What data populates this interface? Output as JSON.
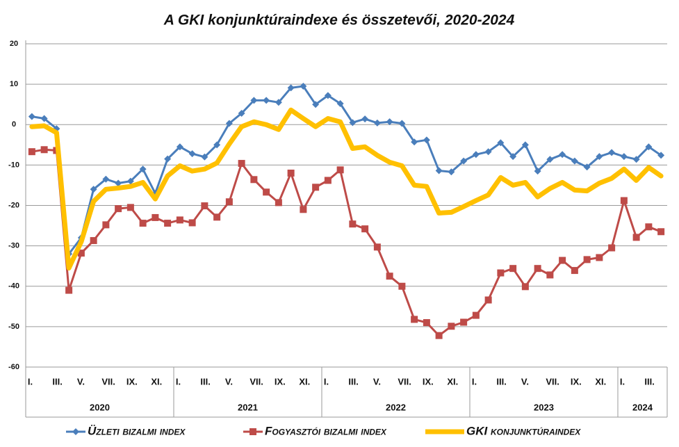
{
  "chart_data": {
    "type": "line",
    "title": "A GKI konjunktúraindexe és összetevői, 2020-2024",
    "categories": [
      "I.",
      null,
      "III.",
      null,
      "V.",
      null,
      "VII.",
      null,
      "IX.",
      null,
      "XI.",
      null,
      "I.",
      null,
      "III.",
      null,
      "V.",
      null,
      "VII.",
      null,
      "IX.",
      null,
      "XI.",
      null,
      "I.",
      null,
      "III.",
      null,
      "V.",
      null,
      "VII.",
      null,
      "IX.",
      null,
      "XI.",
      null,
      "I.",
      null,
      "III.",
      null,
      "V.",
      null,
      "VII.",
      null,
      "IX.",
      null,
      "XI.",
      null,
      "I.",
      null,
      "III.",
      null
    ],
    "groups": [
      "2020",
      "2021",
      "2022",
      "2023",
      "2024"
    ],
    "series": [
      {
        "name": "Üzleti bizalmi index",
        "color": "#4a7ebb",
        "marker": "diamond",
        "values": [
          2,
          1.5,
          -1,
          -32,
          -28,
          -16,
          -13.5,
          -14.5,
          -14,
          -11,
          -17,
          -8.5,
          -5.5,
          -7.2,
          -8,
          -5,
          0.3,
          2.8,
          6,
          6,
          5.5,
          9.1,
          9.5,
          5,
          7.2,
          5.2,
          0.5,
          1.4,
          0.4,
          0.7,
          0.3,
          -4.3,
          -3.8,
          -11.4,
          -11.7,
          -9,
          -7.4,
          -6.7,
          -4.5,
          -7.9,
          -5,
          -11.5,
          -8.6,
          -7.4,
          -9,
          -10.5,
          -7.9,
          -6.9,
          -7.9,
          -8.6,
          -5.5,
          -7.6
        ]
      },
      {
        "name": "Fogyasztói bizalmi index",
        "color": "#be4b48",
        "marker": "square",
        "values": [
          -6.7,
          -6.2,
          -6.4,
          -41,
          -31.8,
          -28.7,
          -24.8,
          -20.8,
          -20.5,
          -24.4,
          -23,
          -24.4,
          -23.6,
          -24.3,
          -20.1,
          -22.9,
          -19.1,
          -9.6,
          -13.6,
          -16.7,
          -19.3,
          -12,
          -21,
          -15.5,
          -13.8,
          -11.2,
          -24.6,
          -25.8,
          -30.3,
          -37.5,
          -40,
          -48.2,
          -49,
          -52.2,
          -49.9,
          -48.9,
          -47.2,
          -43.4,
          -36.7,
          -35.6,
          -40.1,
          -35.6,
          -37.2,
          -33.6,
          -36.1,
          -33.4,
          -32.9,
          -30.5,
          -18.8,
          -27.9,
          -25.3,
          -26.5
        ]
      },
      {
        "name": "GKI konjunktúraindex",
        "color": "#ffc000",
        "marker": "none",
        "values": [
          -0.5,
          -0.3,
          -2,
          -35.5,
          -29,
          -19,
          -16,
          -15.7,
          -15.3,
          -14.3,
          -18.4,
          -12.7,
          -10.2,
          -11.5,
          -11,
          -9.5,
          -4.8,
          -0.5,
          0.7,
          0,
          -1.2,
          3.6,
          1.5,
          -0.5,
          1.5,
          0.7,
          -5.9,
          -5.5,
          -7.6,
          -9.3,
          -10.2,
          -15,
          -15.3,
          -21.9,
          -21.7,
          -20.3,
          -18.8,
          -17.4,
          -13.1,
          -15,
          -14.3,
          -17.9,
          -15.8,
          -14.3,
          -16.2,
          -16.4,
          -14.5,
          -13.3,
          -11,
          -13.8,
          -10.6,
          -12.7
        ]
      }
    ],
    "ylim": [
      -60,
      20
    ],
    "yticks": [
      -60,
      -50,
      -40,
      -30,
      -20,
      -10,
      0,
      10,
      20
    ],
    "grid": true
  }
}
